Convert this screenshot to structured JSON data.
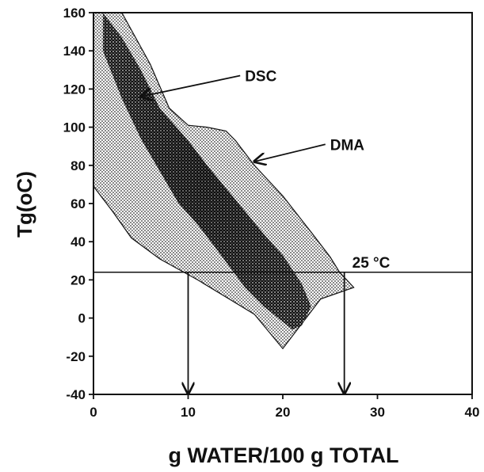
{
  "chart_data": {
    "type": "area",
    "xlabel": "g WATER/100 g TOTAL",
    "ylabel": "Tg(oC)",
    "xlim": [
      0,
      40
    ],
    "ylim": [
      -40,
      160
    ],
    "x_ticks": [
      "0",
      "10",
      "20",
      "30",
      "40"
    ],
    "y_ticks": [
      "160",
      "140",
      "120",
      "100",
      "80",
      "60",
      "40",
      "20",
      "0",
      "-20",
      "-40"
    ],
    "grid": false,
    "regions": [
      {
        "name": "DMA",
        "fill": "light-dots",
        "points": [
          [
            0,
            160
          ],
          [
            3,
            160
          ],
          [
            6,
            133
          ],
          [
            8,
            110
          ],
          [
            10,
            101
          ],
          [
            12,
            100
          ],
          [
            14,
            98
          ],
          [
            15,
            93
          ],
          [
            17,
            80
          ],
          [
            20,
            64
          ],
          [
            23,
            45
          ],
          [
            25,
            32
          ],
          [
            26,
            24
          ],
          [
            27.5,
            16
          ],
          [
            24,
            10
          ],
          [
            20,
            -16
          ],
          [
            17,
            2
          ],
          [
            11,
            20
          ],
          [
            7,
            31
          ],
          [
            4,
            42
          ],
          [
            2,
            56
          ],
          [
            0,
            69
          ]
        ]
      },
      {
        "name": "DSC",
        "fill": "dark-dots",
        "points": [
          [
            1,
            160
          ],
          [
            3,
            147
          ],
          [
            5,
            130
          ],
          [
            7,
            110
          ],
          [
            10,
            93
          ],
          [
            12,
            80
          ],
          [
            14,
            68
          ],
          [
            16,
            56
          ],
          [
            18,
            44
          ],
          [
            20,
            33
          ],
          [
            22,
            18
          ],
          [
            23,
            6
          ],
          [
            22,
            -4
          ],
          [
            21,
            -6
          ],
          [
            18,
            6
          ],
          [
            16,
            16
          ],
          [
            13,
            36
          ],
          [
            11,
            49
          ],
          [
            9,
            60
          ],
          [
            7,
            77
          ],
          [
            5,
            94
          ],
          [
            3,
            115
          ],
          [
            1,
            140
          ]
        ]
      }
    ],
    "reference_line": {
      "y": 24,
      "label": "25 °C",
      "label_x": 27
    },
    "drop_arrows": [
      {
        "x": 10,
        "from_y": 24,
        "to_y": -40
      },
      {
        "x": 26.5,
        "from_y": 24,
        "to_y": -40
      }
    ],
    "annotations": [
      {
        "text": "DSC",
        "text_x": 16,
        "text_y": 127,
        "arrow_to": [
          5,
          116
        ]
      },
      {
        "text": "DMA",
        "text_x": 25,
        "text_y": 91,
        "arrow_to": [
          17,
          82
        ]
      }
    ],
    "colors": {
      "ink": "#111111",
      "light_dot": "#333333",
      "dark_dot": "#111111"
    }
  }
}
